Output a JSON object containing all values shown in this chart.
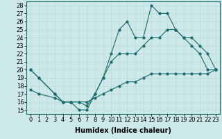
{
  "xlabel": "Humidex (Indice chaleur)",
  "background_color": "#cce8e8",
  "line_color": "#1a6b6b",
  "grid_color": "#b8d8d8",
  "xlim": [
    -0.5,
    23.5
  ],
  "ylim": [
    14.5,
    28.5
  ],
  "yticks": [
    15,
    16,
    17,
    18,
    19,
    20,
    21,
    22,
    23,
    24,
    25,
    26,
    27,
    28
  ],
  "xticks": [
    0,
    1,
    2,
    3,
    4,
    5,
    6,
    7,
    8,
    9,
    10,
    11,
    12,
    13,
    14,
    15,
    16,
    17,
    18,
    19,
    20,
    21,
    22,
    23
  ],
  "main_x": [
    0,
    1,
    3,
    4,
    5,
    6,
    7,
    8,
    9,
    10,
    11,
    12,
    13,
    14,
    15,
    16,
    17,
    18,
    19,
    20,
    21,
    22,
    23
  ],
  "main_y": [
    20,
    19,
    17,
    16,
    16,
    15,
    15,
    17,
    19,
    22,
    25,
    26,
    24,
    24,
    28,
    27,
    27,
    25,
    24,
    23,
    22,
    20,
    20
  ],
  "line2_x": [
    0,
    1,
    3,
    4,
    5,
    6,
    7,
    8,
    9,
    10,
    11,
    12,
    13,
    14,
    15,
    16,
    17,
    18,
    19,
    20,
    21,
    22,
    23
  ],
  "line2_y": [
    20,
    19,
    17,
    16,
    16,
    16,
    15.5,
    17,
    19,
    21,
    22,
    22,
    22,
    23,
    24,
    24,
    25,
    25,
    24,
    24,
    23,
    22,
    20
  ],
  "line3_x": [
    0,
    1,
    3,
    4,
    5,
    6,
    7,
    8,
    9,
    10,
    11,
    12,
    13,
    14,
    15,
    16,
    17,
    18,
    19,
    20,
    21,
    22,
    23
  ],
  "line3_y": [
    17.5,
    17,
    16.5,
    16,
    16,
    16,
    16,
    16.5,
    17,
    17.5,
    18,
    18.5,
    18.5,
    19,
    19.5,
    19.5,
    19.5,
    19.5,
    19.5,
    19.5,
    19.5,
    19.5,
    20
  ],
  "font_size_label": 7,
  "font_size_tick": 6,
  "fig_width": 3.2,
  "fig_height": 2.0,
  "dpi": 100
}
